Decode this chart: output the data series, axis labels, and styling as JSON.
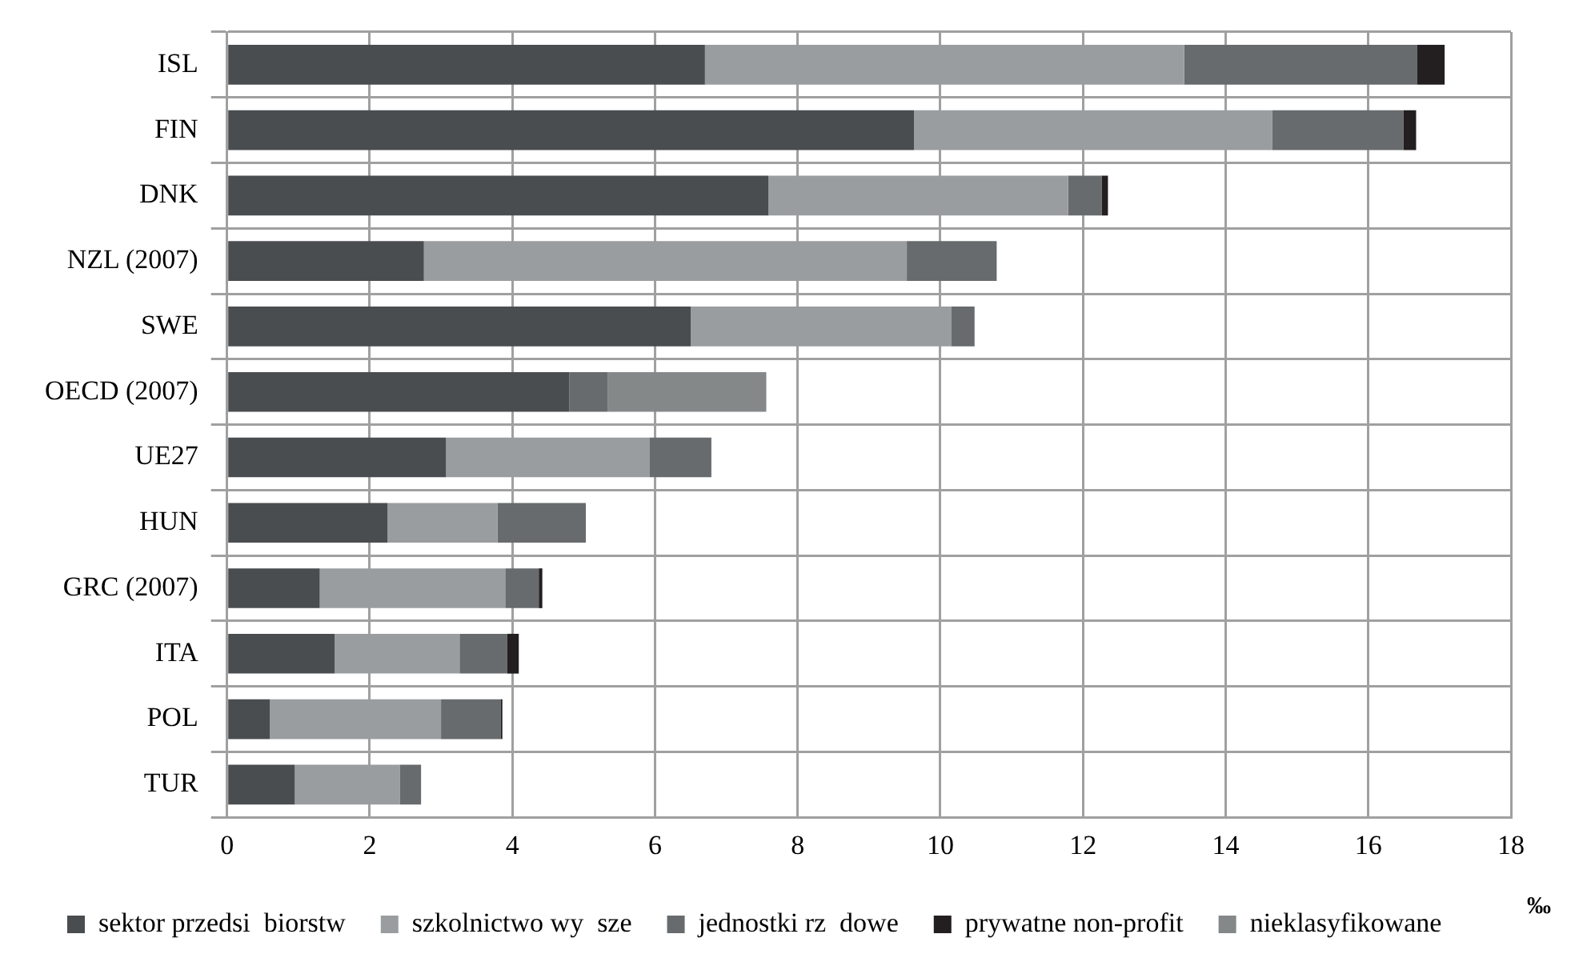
{
  "chart_data": {
    "type": "bar",
    "orientation": "horizontal",
    "stacked": true,
    "xlabel": "‰",
    "categories": [
      "ISL",
      "FIN",
      "DNK",
      "NZL (2007)",
      "SWE",
      "OECD (2007)",
      "UE27",
      "HUN",
      "GRC (2007)",
      "ITA",
      "POL",
      "TUR"
    ],
    "series": [
      {
        "name": "sektor przedsi  biorstw",
        "color": "#4a4d50",
        "values": [
          6.7,
          9.63,
          7.59,
          2.76,
          6.5,
          4.8,
          3.07,
          2.25,
          1.3,
          1.51,
          0.6,
          0.95
        ]
      },
      {
        "name": "szkolnictwo wy  sze",
        "color": "#9a9d9f",
        "values": [
          6.72,
          5.02,
          4.2,
          6.77,
          3.65,
          null,
          2.85,
          1.54,
          2.6,
          1.75,
          2.4,
          1.47
        ]
      },
      {
        "name": "jednostki rz  dowe",
        "color": "#676b6d",
        "values": [
          3.26,
          1.84,
          0.47,
          1.26,
          0.33,
          0.54,
          0.87,
          1.24,
          0.47,
          0.67,
          0.84,
          0.3
        ]
      },
      {
        "name": "prywatne non-profit",
        "color": "#231f20",
        "values": [
          0.39,
          0.18,
          0.09,
          null,
          null,
          null,
          null,
          null,
          0.05,
          0.16,
          0.02,
          null
        ]
      },
      {
        "name": "nieklasyfikowane",
        "color": "#858889",
        "values": [
          null,
          null,
          null,
          null,
          null,
          2.22,
          null,
          null,
          null,
          null,
          null,
          null
        ]
      }
    ],
    "xlim": [
      0,
      18
    ],
    "xticks": [
      0,
      2,
      4,
      6,
      8,
      10,
      12,
      14,
      16,
      18
    ],
    "grid": true,
    "legend": "bottom"
  }
}
